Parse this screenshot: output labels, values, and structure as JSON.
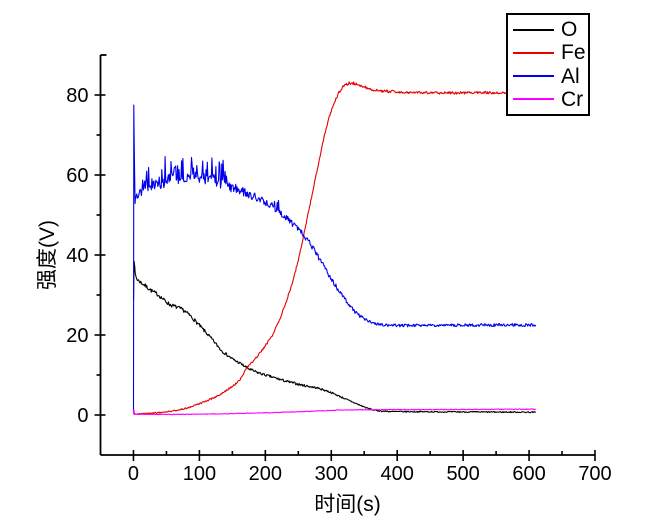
{
  "chart_data": {
    "type": "line",
    "title": "",
    "xlabel": "时间(s)",
    "ylabel": "强度(V)",
    "xlim": [
      -50,
      700
    ],
    "ylim": [
      -10,
      90
    ],
    "x_ticks": [
      0,
      100,
      200,
      300,
      400,
      500,
      600,
      700
    ],
    "y_ticks": [
      0,
      20,
      40,
      60,
      80
    ],
    "x_minor_step": 50,
    "y_minor_step": 10,
    "grid": false,
    "legend_position": "top-right",
    "axis_color": "#000000",
    "background": "#ffffff",
    "series": [
      {
        "name": "O",
        "color": "#000000",
        "noise": [
          [
            0,
            0.4
          ],
          [
            20,
            0.5
          ],
          [
            100,
            0.45
          ],
          [
            150,
            0.35
          ],
          [
            250,
            0.3
          ],
          [
            310,
            0.2
          ],
          [
            400,
            0.15
          ],
          [
            610,
            0.15
          ]
        ],
        "points": [
          [
            0,
            29
          ],
          [
            1,
            38.8
          ],
          [
            2.5,
            35.5
          ],
          [
            5,
            34
          ],
          [
            10,
            33.3
          ],
          [
            18,
            32.3
          ],
          [
            28,
            31
          ],
          [
            38,
            30
          ],
          [
            46,
            28.8
          ],
          [
            55,
            27.6
          ],
          [
            65,
            27
          ],
          [
            75,
            26.3
          ],
          [
            85,
            25
          ],
          [
            95,
            23.3
          ],
          [
            105,
            21.5
          ],
          [
            115,
            19.7
          ],
          [
            125,
            17.8
          ],
          [
            133,
            16.2
          ],
          [
            142,
            15
          ],
          [
            152,
            13.8
          ],
          [
            163,
            12.8
          ],
          [
            172,
            11.8
          ],
          [
            182,
            11
          ],
          [
            192,
            10.4
          ],
          [
            202,
            9.9
          ],
          [
            212,
            9.4
          ],
          [
            222,
            8.9
          ],
          [
            232,
            8.4
          ],
          [
            243,
            8
          ],
          [
            255,
            7.5
          ],
          [
            268,
            7.1
          ],
          [
            280,
            6.7
          ],
          [
            292,
            6.1
          ],
          [
            303,
            5.4
          ],
          [
            315,
            4.5
          ],
          [
            327,
            3.6
          ],
          [
            340,
            2.7
          ],
          [
            353,
            1.8
          ],
          [
            365,
            1.2
          ],
          [
            378,
            0.95
          ],
          [
            395,
            0.85
          ],
          [
            450,
            0.8
          ],
          [
            520,
            0.75
          ],
          [
            610,
            0.7
          ]
        ]
      },
      {
        "name": "Fe",
        "color": "#e60000",
        "noise": [
          [
            0,
            0.15
          ],
          [
            100,
            0.2
          ],
          [
            200,
            0.25
          ],
          [
            300,
            0.3
          ],
          [
            330,
            0.35
          ],
          [
            610,
            0.3
          ]
        ],
        "points": [
          [
            0,
            0.3
          ],
          [
            15,
            0.3
          ],
          [
            30,
            0.45
          ],
          [
            45,
            0.7
          ],
          [
            60,
            1.0
          ],
          [
            75,
            1.5
          ],
          [
            90,
            2.2
          ],
          [
            105,
            3.1
          ],
          [
            118,
            4.0
          ],
          [
            130,
            5.0
          ],
          [
            142,
            6.2
          ],
          [
            152,
            7.4
          ],
          [
            162,
            8.9
          ],
          [
            172,
            11.8
          ],
          [
            182,
            13.5
          ],
          [
            192,
            15.5
          ],
          [
            202,
            17.8
          ],
          [
            212,
            20.3
          ],
          [
            222,
            24
          ],
          [
            230,
            27.5
          ],
          [
            238,
            31.5
          ],
          [
            245,
            35.5
          ],
          [
            251,
            39.5
          ],
          [
            257,
            44
          ],
          [
            262,
            48
          ],
          [
            267,
            52
          ],
          [
            272,
            56
          ],
          [
            277,
            60
          ],
          [
            282,
            64
          ],
          [
            287,
            68
          ],
          [
            292,
            71.5
          ],
          [
            297,
            74.5
          ],
          [
            302,
            77
          ],
          [
            307,
            79
          ],
          [
            312,
            80.7
          ],
          [
            320,
            82.5
          ],
          [
            328,
            83
          ],
          [
            336,
            82.9
          ],
          [
            345,
            82.4
          ],
          [
            355,
            81.7
          ],
          [
            365,
            81.2
          ],
          [
            380,
            80.9
          ],
          [
            400,
            80.8
          ],
          [
            440,
            80.6
          ],
          [
            480,
            80.5
          ],
          [
            530,
            80.6
          ],
          [
            570,
            80.5
          ],
          [
            610,
            80.6
          ]
        ]
      },
      {
        "name": "Al",
        "color": "#0000ee",
        "noise": [
          [
            0,
            0.2
          ],
          [
            2,
            0.8
          ],
          [
            10,
            1.1
          ],
          [
            30,
            1.3
          ],
          [
            90,
            1.4
          ],
          [
            150,
            1.1
          ],
          [
            200,
            0.9
          ],
          [
            250,
            0.7
          ],
          [
            300,
            0.6
          ],
          [
            340,
            0.45
          ],
          [
            380,
            0.35
          ],
          [
            610,
            0.35
          ]
        ],
        "spikes": [
          {
            "range": [
              12,
              150
            ],
            "prob": 0.3,
            "max": 5.5
          },
          {
            "range": [
              150,
              220
            ],
            "prob": 0.12,
            "max": 2.5
          }
        ],
        "points": [
          [
            0,
            1
          ],
          [
            0.5,
            77.5
          ],
          [
            1.5,
            63
          ],
          [
            2.5,
            53
          ],
          [
            5,
            54.5
          ],
          [
            10,
            55.5
          ],
          [
            20,
            56.5
          ],
          [
            35,
            57.5
          ],
          [
            50,
            58.3
          ],
          [
            65,
            59
          ],
          [
            80,
            59.6
          ],
          [
            95,
            59.5
          ],
          [
            105,
            59.2
          ],
          [
            115,
            58.7
          ],
          [
            130,
            58
          ],
          [
            145,
            57
          ],
          [
            160,
            55.9
          ],
          [
            175,
            55
          ],
          [
            190,
            54.2
          ],
          [
            200,
            53.3
          ],
          [
            210,
            52.3
          ],
          [
            220,
            51
          ],
          [
            230,
            49.6
          ],
          [
            240,
            48
          ],
          [
            250,
            46.4
          ],
          [
            258,
            45
          ],
          [
            266,
            43.3
          ],
          [
            273,
            41.5
          ],
          [
            280,
            39.6
          ],
          [
            287,
            37.7
          ],
          [
            294,
            35.7
          ],
          [
            300,
            34
          ],
          [
            307,
            32.2
          ],
          [
            314,
            30.4
          ],
          [
            321,
            28.8
          ],
          [
            328,
            27.3
          ],
          [
            335,
            26
          ],
          [
            343,
            24.8
          ],
          [
            351,
            23.9
          ],
          [
            360,
            23.2
          ],
          [
            370,
            22.7
          ],
          [
            382,
            22.5
          ],
          [
            400,
            22.4
          ],
          [
            450,
            22.4
          ],
          [
            500,
            22.45
          ],
          [
            550,
            22.5
          ],
          [
            610,
            22.5
          ]
        ]
      },
      {
        "name": "Cr",
        "color": "#ff00ff",
        "noise": [
          [
            0,
            0.06
          ],
          [
            200,
            0.08
          ],
          [
            610,
            0.1
          ]
        ],
        "points": [
          [
            0,
            0.2
          ],
          [
            0.7,
            1.4
          ],
          [
            1.5,
            0.2
          ],
          [
            30,
            0.15
          ],
          [
            60,
            0.15
          ],
          [
            90,
            0.2
          ],
          [
            120,
            0.25
          ],
          [
            150,
            0.35
          ],
          [
            180,
            0.45
          ],
          [
            210,
            0.6
          ],
          [
            240,
            0.75
          ],
          [
            265,
            0.9
          ],
          [
            285,
            1.05
          ],
          [
            300,
            1.15
          ],
          [
            315,
            1.25
          ],
          [
            340,
            1.3
          ],
          [
            380,
            1.35
          ],
          [
            450,
            1.35
          ],
          [
            520,
            1.4
          ],
          [
            610,
            1.45
          ]
        ]
      }
    ]
  }
}
